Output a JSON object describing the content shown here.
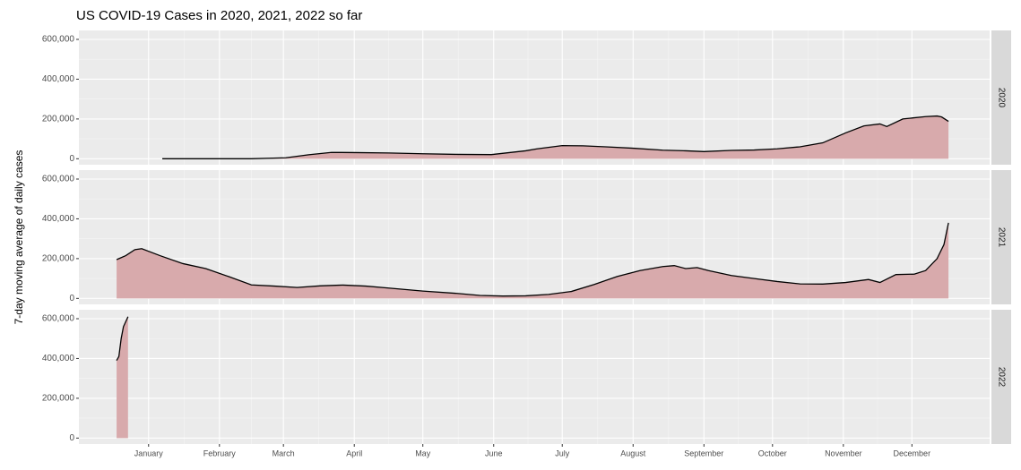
{
  "chart_data": {
    "type": "area",
    "title": "US COVID-19 Cases in 2020, 2021, 2022 so far",
    "y_label": "7-day moving average of daily cases",
    "xlim": [
      -15.5,
      383
    ],
    "xticks": [
      {
        "value": 15,
        "label": "January"
      },
      {
        "value": 46,
        "label": "February"
      },
      {
        "value": 74,
        "label": "March"
      },
      {
        "value": 105,
        "label": "April"
      },
      {
        "value": 135,
        "label": "May"
      },
      {
        "value": 166,
        "label": "June"
      },
      {
        "value": 196,
        "label": "July"
      },
      {
        "value": 227,
        "label": "August"
      },
      {
        "value": 258,
        "label": "September"
      },
      {
        "value": 288,
        "label": "October"
      },
      {
        "value": 319,
        "label": "November"
      },
      {
        "value": 349,
        "label": "December"
      }
    ],
    "ylim": [
      -30000,
      645000
    ],
    "yticks": [
      0,
      {
        "value": 200000,
        "label": "200,000"
      },
      {
        "value": 400000,
        "label": "400,000"
      },
      {
        "value": 600000,
        "label": "600,000"
      }
    ],
    "grid": true,
    "series": [
      {
        "name": "2020",
        "color": "#d8aaac",
        "line_color": "#000000",
        "x": [
          21,
          60,
          75,
          85,
          95,
          105,
          120,
          135,
          150,
          165,
          180,
          185,
          196,
          205,
          215,
          227,
          240,
          250,
          258,
          270,
          280,
          290,
          300,
          310,
          320,
          328,
          335,
          338,
          345,
          355,
          360,
          362,
          365
        ],
        "values": [
          0,
          0,
          5000,
          20000,
          32000,
          31000,
          29000,
          25000,
          22000,
          21000,
          40000,
          50000,
          66000,
          65000,
          60000,
          53000,
          43000,
          40000,
          36000,
          42000,
          44000,
          50000,
          60000,
          80000,
          130000,
          165000,
          175000,
          162000,
          200000,
          212000,
          215000,
          210000,
          188000
        ]
      },
      {
        "name": "2021",
        "color": "#d8aaac",
        "line_color": "#000000",
        "x": [
          1,
          5,
          9,
          12,
          20,
          30,
          40,
          50,
          60,
          70,
          80,
          90,
          100,
          110,
          120,
          135,
          150,
          160,
          170,
          180,
          190,
          200,
          210,
          220,
          230,
          240,
          245,
          250,
          255,
          260,
          270,
          280,
          290,
          300,
          310,
          320,
          330,
          335,
          342,
          350,
          355,
          360,
          363,
          365
        ],
        "values": [
          195000,
          215000,
          245000,
          250000,
          215000,
          175000,
          150000,
          110000,
          68000,
          62000,
          55000,
          63000,
          67000,
          62000,
          52000,
          37000,
          25000,
          15000,
          12000,
          13000,
          20000,
          35000,
          70000,
          110000,
          140000,
          160000,
          165000,
          150000,
          155000,
          140000,
          115000,
          100000,
          85000,
          73000,
          72000,
          80000,
          95000,
          80000,
          120000,
          122000,
          140000,
          200000,
          270000,
          380000
        ]
      },
      {
        "name": "2022",
        "color": "#d8aaac",
        "line_color": "#000000",
        "x": [
          1,
          2,
          3,
          4,
          6
        ],
        "values": [
          390000,
          410000,
          500000,
          560000,
          610000
        ]
      }
    ]
  }
}
